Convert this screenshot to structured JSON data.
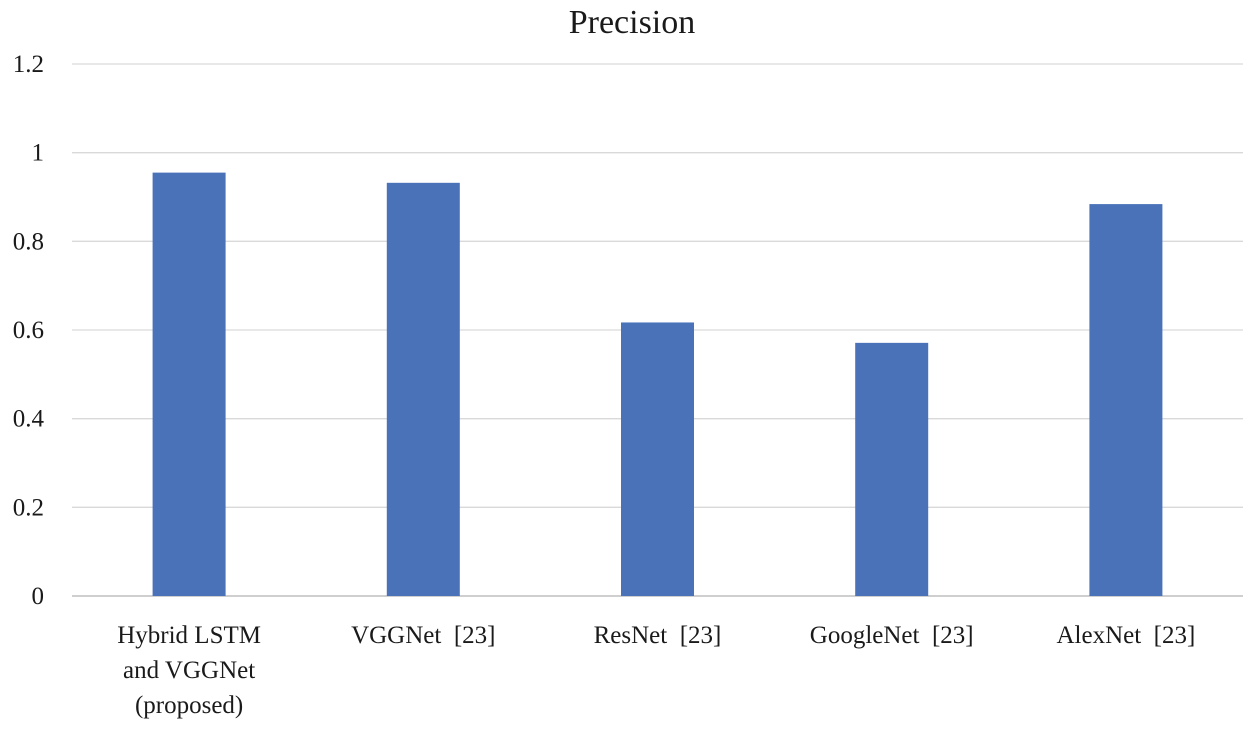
{
  "chart_data": {
    "type": "bar",
    "title": "Precision",
    "xlabel": "",
    "ylabel": "",
    "ylim": [
      0,
      1.2
    ],
    "yticks": [
      "0",
      "0.2",
      "0.4",
      "0.6",
      "0.8",
      "1",
      "1.2"
    ],
    "grid": true,
    "categories": [
      [
        "Hybrid LSTM",
        "and VGGNet",
        "(proposed)"
      ],
      [
        "VGGNet  [23]"
      ],
      [
        "ResNet  [23]"
      ],
      [
        "GoogleNet  [23]"
      ],
      [
        "AlexNet  [23]"
      ]
    ],
    "values": [
      0.955,
      0.932,
      0.617,
      0.571,
      0.884
    ],
    "bar_color": "#4a72b8"
  }
}
